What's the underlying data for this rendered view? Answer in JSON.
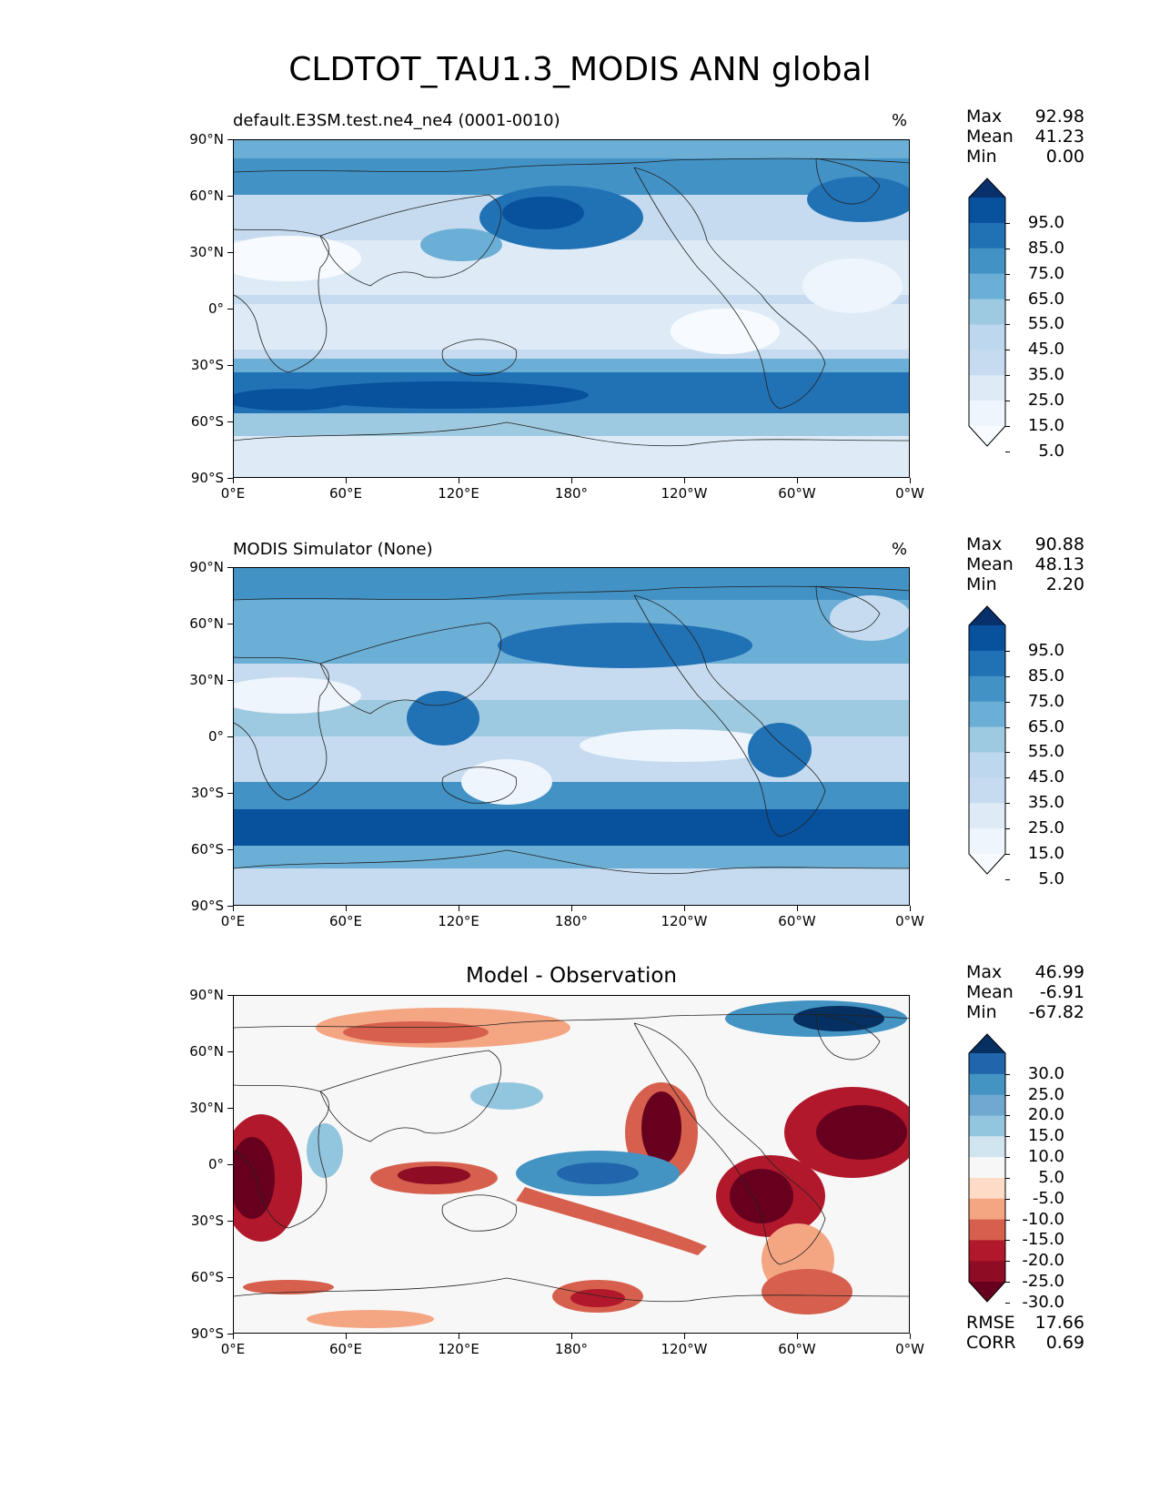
{
  "figure": {
    "title": "CLDTOT_TAU1.3_MODIS ANN global"
  },
  "axes": {
    "lat_ticks": [
      "90°N",
      "60°N",
      "30°N",
      "0°",
      "30°S",
      "60°S",
      "90°S"
    ],
    "lon_ticks": [
      "0°E",
      "60°E",
      "120°E",
      "180°",
      "120°W",
      "60°W",
      "0°W"
    ]
  },
  "panels": [
    {
      "id": "test",
      "title": "default.E3SM.test.ne4_ne4 (0001-0010)",
      "units": "%",
      "stats": [
        {
          "label": "Max",
          "value": "92.98"
        },
        {
          "label": "Mean",
          "value": "41.23"
        },
        {
          "label": "Min",
          "value": "0.00"
        }
      ],
      "colorbar": {
        "labels": [
          "95.0",
          "85.0",
          "75.0",
          "65.0",
          "55.0",
          "45.0",
          "35.0",
          "25.0",
          "15.0",
          "5.0"
        ],
        "colors": [
          "#08306b",
          "#08519c",
          "#2171b5",
          "#4292c6",
          "#6baed6",
          "#9ecae1",
          "#bdd7ee",
          "#c6dbef",
          "#deebf7",
          "#eef5fc",
          "#f7fbff"
        ]
      }
    },
    {
      "id": "reference",
      "title": "MODIS Simulator (None)",
      "units": "%",
      "stats": [
        {
          "label": "Max",
          "value": "90.88"
        },
        {
          "label": "Mean",
          "value": "48.13"
        },
        {
          "label": "Min",
          "value": "2.20"
        }
      ],
      "colorbar": {
        "labels": [
          "95.0",
          "85.0",
          "75.0",
          "65.0",
          "55.0",
          "45.0",
          "35.0",
          "25.0",
          "15.0",
          "5.0"
        ],
        "colors": [
          "#08306b",
          "#08519c",
          "#2171b5",
          "#4292c6",
          "#6baed6",
          "#9ecae1",
          "#bdd7ee",
          "#c6dbef",
          "#deebf7",
          "#eef5fc",
          "#f7fbff"
        ]
      }
    },
    {
      "id": "diff",
      "title": "Model - Observation",
      "stats": [
        {
          "label": "Max",
          "value": "46.99"
        },
        {
          "label": "Mean",
          "value": "-6.91"
        },
        {
          "label": "Min",
          "value": "-67.82"
        }
      ],
      "extra_stats": [
        {
          "label": "RMSE",
          "value": "17.66"
        },
        {
          "label": "CORR",
          "value": "0.69"
        }
      ],
      "colorbar": {
        "labels": [
          "30.0",
          "25.0",
          "20.0",
          "15.0",
          "10.0",
          "5.0",
          "-5.0",
          "-10.0",
          "-15.0",
          "-20.0",
          "-25.0",
          "-30.0"
        ],
        "colors": [
          "#053061",
          "#2166ac",
          "#4393c3",
          "#6fa9d2",
          "#92c5de",
          "#d1e5f0",
          "#f7f7f7",
          "#fddbc7",
          "#f4a582",
          "#d6604d",
          "#b2182b",
          "#8e0d24",
          "#67001f"
        ]
      }
    }
  ]
}
